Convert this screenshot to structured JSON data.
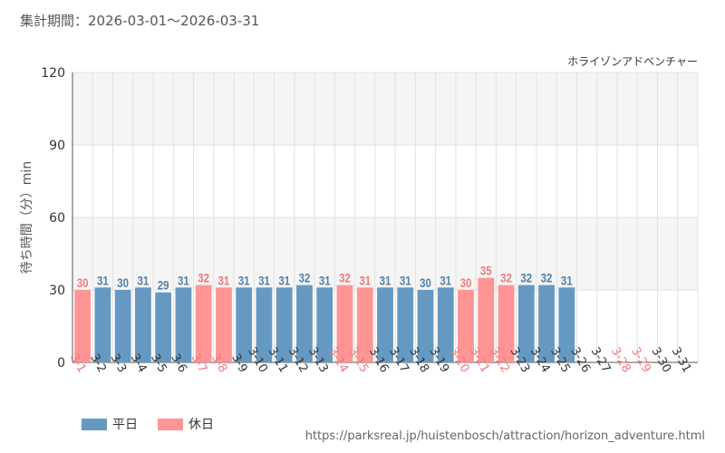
{
  "header": {
    "period_label": "集計期間：2026-03-01～2026-03-31"
  },
  "legend": {
    "weekday": "平日",
    "holiday": "休日"
  },
  "source_url": "https://parksreal.jp/huistenbosch/attraction/horizon_adventure.html",
  "colors": {
    "weekday": "#6699c2",
    "holiday": "#ff9494",
    "weekday_text": "#4f7fab",
    "holiday_text": "#ef7878",
    "band": "#f5f5f5",
    "grid": "#e2e2e2"
  },
  "chart_data": {
    "type": "bar",
    "title": "ホライゾンアドベンチャー",
    "xlabel": "",
    "ylabel": "待ち時間（分）min",
    "ylim": [
      0,
      120
    ],
    "yticks": [
      0,
      30,
      60,
      90,
      120
    ],
    "categories": [
      "3-1",
      "3-2",
      "3-3",
      "3-4",
      "3-5",
      "3-6",
      "3-7",
      "3-8",
      "3-9",
      "3-10",
      "3-11",
      "3-12",
      "3-13",
      "3-14",
      "3-15",
      "3-16",
      "3-17",
      "3-18",
      "3-19",
      "3-20",
      "3-21",
      "3-22",
      "3-23",
      "3-24",
      "3-25",
      "3-26",
      "3-27",
      "3-28",
      "3-29",
      "3-30",
      "3-31"
    ],
    "values": [
      30,
      31,
      30,
      31,
      29,
      31,
      32,
      31,
      31,
      31,
      31,
      32,
      31,
      32,
      31,
      31,
      31,
      30,
      31,
      30,
      35,
      32,
      32,
      32,
      31,
      null,
      null,
      null,
      null,
      null,
      null
    ],
    "day_type": [
      "holiday",
      "weekday",
      "weekday",
      "weekday",
      "weekday",
      "weekday",
      "holiday",
      "holiday",
      "weekday",
      "weekday",
      "weekday",
      "weekday",
      "weekday",
      "holiday",
      "holiday",
      "weekday",
      "weekday",
      "weekday",
      "weekday",
      "holiday",
      "holiday",
      "holiday",
      "weekday",
      "weekday",
      "weekday",
      "weekday",
      "weekday",
      "holiday",
      "holiday",
      "weekday",
      "weekday"
    ]
  }
}
